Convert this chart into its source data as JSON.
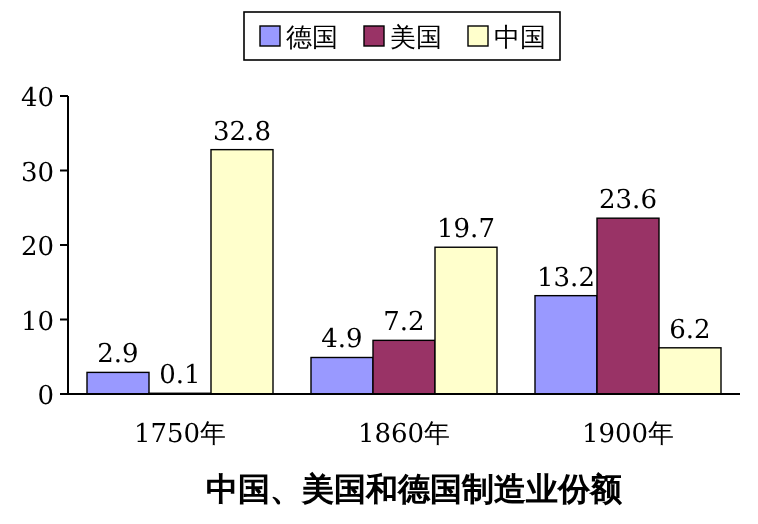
{
  "chart_data": {
    "type": "bar",
    "title": "中国、美国和德国制造业份额",
    "categories": [
      "1750年",
      "1860年",
      "1900年"
    ],
    "series": [
      {
        "name": "德国",
        "color": "#9999ff",
        "values": [
          2.9,
          4.9,
          13.2
        ]
      },
      {
        "name": "美国",
        "color": "#993366",
        "values": [
          0.1,
          7.2,
          23.6
        ]
      },
      {
        "name": "中国",
        "color": "#ffffcc",
        "values": [
          32.8,
          19.7,
          6.2
        ]
      }
    ],
    "ylim": [
      0,
      40
    ],
    "yticks": [
      0,
      10,
      20,
      30,
      40
    ],
    "data_labels": true,
    "legend": "top",
    "grid": false
  }
}
